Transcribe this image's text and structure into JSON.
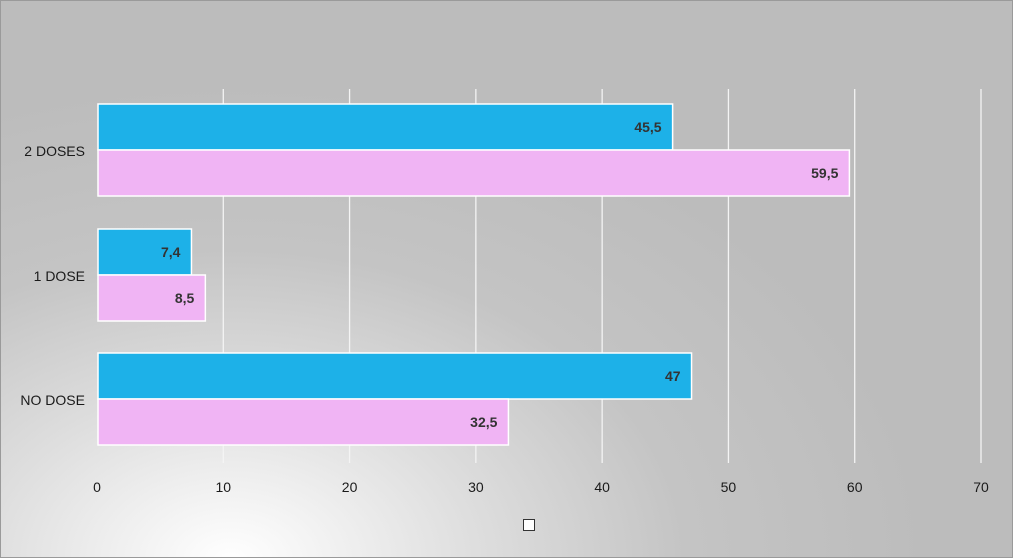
{
  "chart_data": {
    "type": "bar",
    "orientation": "horizontal",
    "categories": [
      "2 DOSES",
      "1 DOSE",
      "NO DOSE"
    ],
    "series": [
      {
        "values": [
          45.5,
          7.4,
          47
        ],
        "labels": [
          "45,5",
          "7,4",
          "47"
        ],
        "color": "#1db1e8"
      },
      {
        "values": [
          59.5,
          8.5,
          32.5
        ],
        "labels": [
          "59,5",
          "8,5",
          "32,5"
        ],
        "color": "#f0b4f4"
      }
    ],
    "x_ticks": [
      "0",
      "10",
      "20",
      "30",
      "40",
      "50",
      "60",
      "70"
    ],
    "xlim": [
      0,
      70
    ],
    "grid": true,
    "legend": "bottom"
  }
}
